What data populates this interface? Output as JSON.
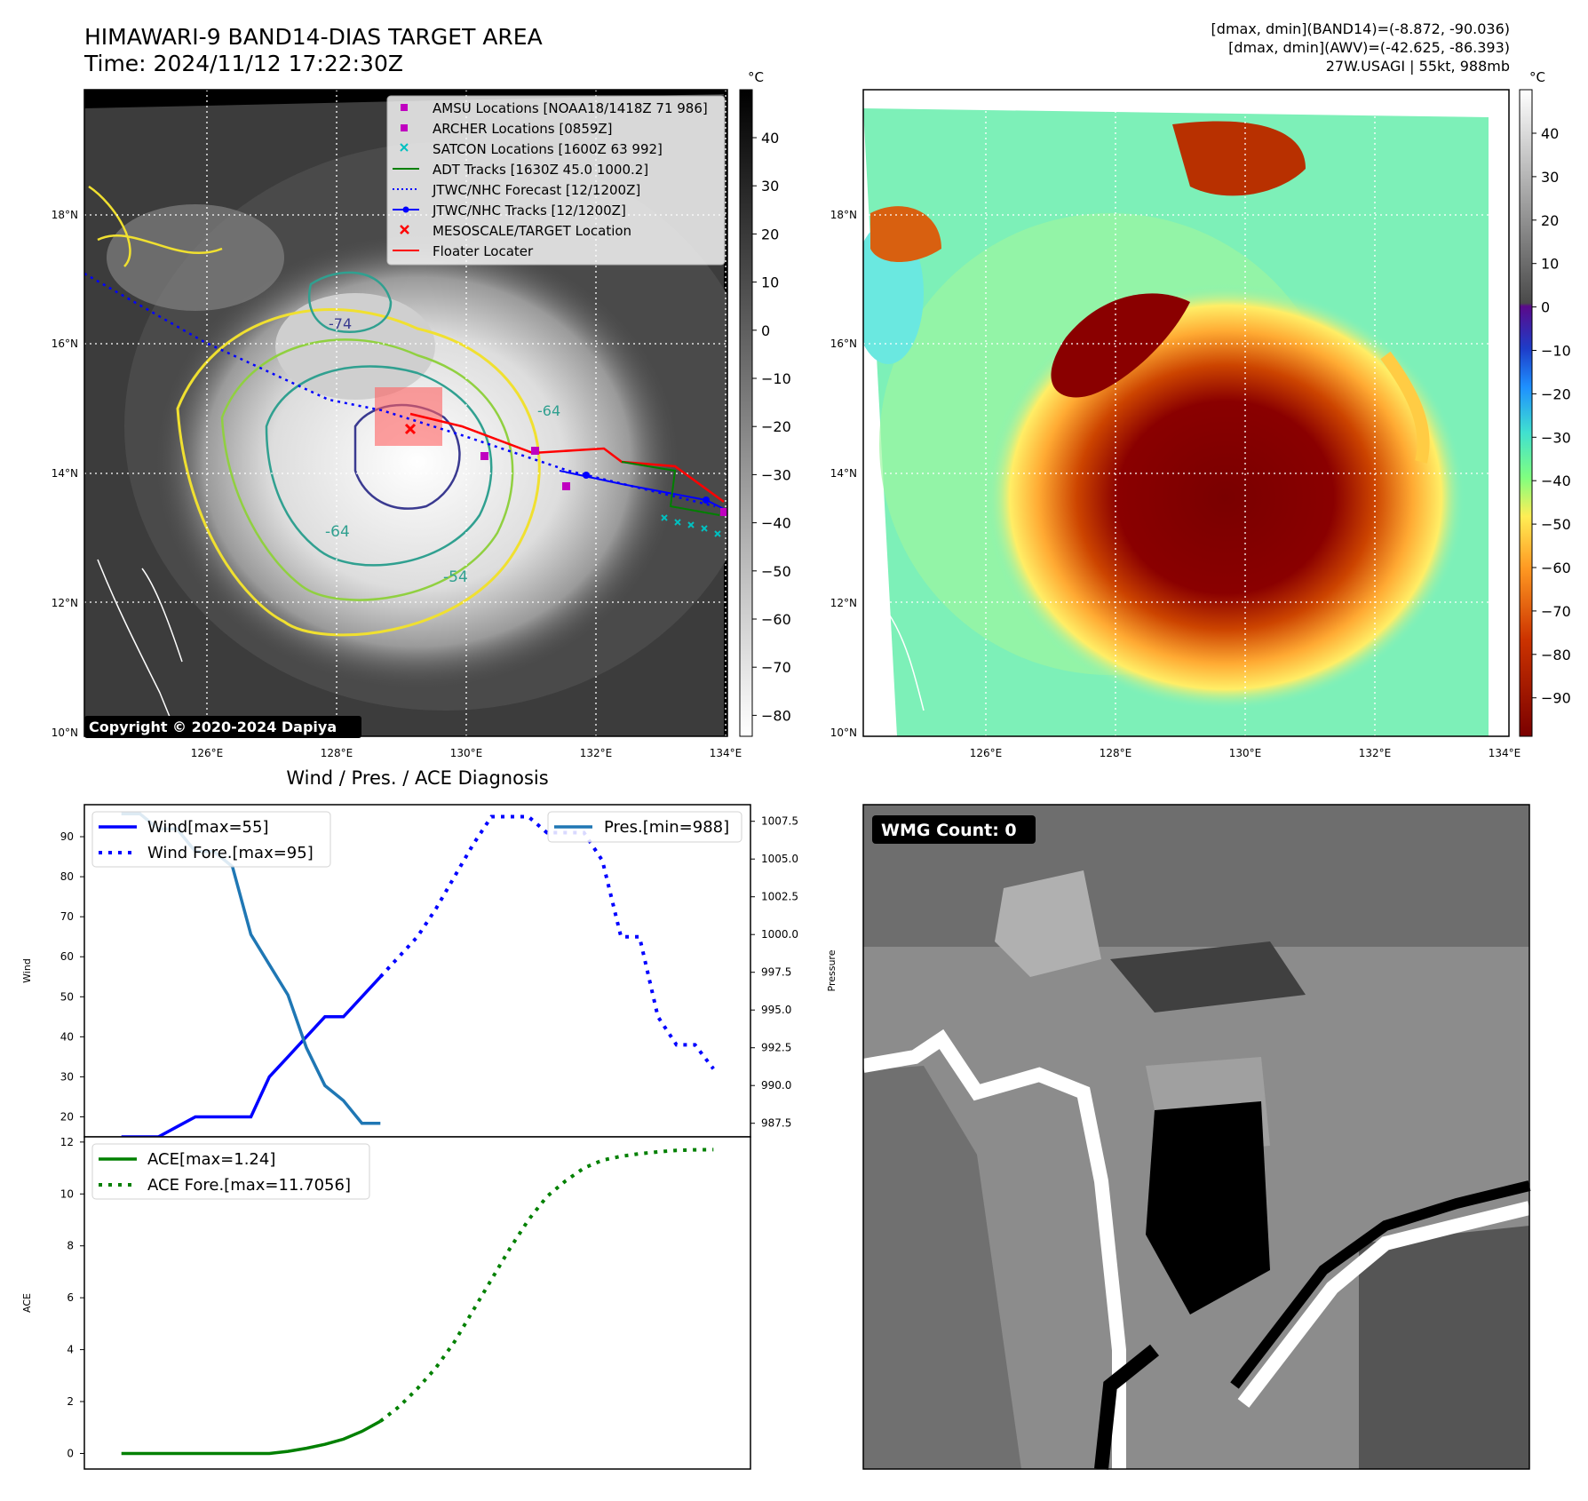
{
  "header": {
    "title": "HIMAWARI-9 BAND14-DIAS TARGET AREA",
    "time": "Time: 2024/11/12 17:22:30Z",
    "stats_line1": "[dmax, dmin](BAND14)=(-8.872, -90.036)",
    "stats_line2": "[dmax, dmin](AWV)=(-42.625, -86.393)",
    "stats_line3": "27W.USAGI | 55kt, 988mb"
  },
  "maps": {
    "lon_labels": [
      "126°E",
      "128°E",
      "130°E",
      "132°E",
      "134°E"
    ],
    "lat_labels": [
      "10°N",
      "12°N",
      "14°N",
      "16°N",
      "18°N"
    ],
    "copyright": "Copyright © 2020-2024 Dapiya",
    "contour_labels": [
      "-64",
      "-54",
      "-74",
      "-64"
    ],
    "legend": [
      {
        "label": "AMSU Locations [NOAA18/1418Z 71 986]",
        "marker": "square",
        "color": "#c000c0"
      },
      {
        "label": "ARCHER Locations [0859Z]",
        "marker": "square",
        "color": "#c000c0"
      },
      {
        "label": "SATCON Locations [1600Z 63 992]",
        "marker": "x",
        "color": "#00c0c0"
      },
      {
        "label": "ADT Tracks [1630Z 45.0 1000.2]",
        "marker": "line",
        "color": "#008000"
      },
      {
        "label": "JTWC/NHC Forecast [12/1200Z]",
        "marker": "dotted",
        "color": "#0000ff"
      },
      {
        "label": "JTWC/NHC Tracks [12/1200Z]",
        "marker": "line-dot",
        "color": "#0000ff"
      },
      {
        "label": "MESOSCALE/TARGET Location",
        "marker": "x",
        "color": "#ff0000"
      },
      {
        "label": "Floater Locater",
        "marker": "line",
        "color": "#ff0000"
      }
    ]
  },
  "colorbars": {
    "unit": "°C",
    "gray_ticks": [
      "40",
      "30",
      "20",
      "10",
      "0",
      "−10",
      "−20",
      "−30",
      "−40",
      "−50",
      "−60",
      "−70",
      "−80"
    ],
    "color_ticks": [
      "40",
      "30",
      "20",
      "10",
      "0",
      "−10",
      "−20",
      "−30",
      "−40",
      "−50",
      "−60",
      "−70",
      "−80",
      "−90"
    ]
  },
  "wmg": {
    "label": "WMG Count: 0"
  },
  "chart_data": [
    {
      "type": "line",
      "title": "Wind / Pres. / ACE Diagnosis",
      "ylabel": "Wind",
      "y2label": "Pressure",
      "ylim": [
        15,
        98
      ],
      "y2lim": [
        986.6,
        1008.6
      ],
      "x_range": [
        -2,
        34
      ],
      "yticks": [
        20,
        30,
        40,
        50,
        60,
        70,
        80,
        90
      ],
      "y2ticks": [
        "987.5",
        "990.0",
        "992.5",
        "995.0",
        "997.5",
        "1000.0",
        "1002.5",
        "1005.0",
        "1007.5"
      ],
      "series": [
        {
          "name": "Wind[max=55]",
          "style": "solid",
          "color": "#0000ff",
          "x": [
            0,
            1,
            2,
            3,
            4,
            5,
            6,
            7,
            8,
            9,
            10,
            11,
            12,
            13,
            14
          ],
          "values": [
            15,
            15,
            15,
            17.5,
            20,
            20,
            20,
            20,
            30,
            35,
            40,
            45,
            45,
            50,
            55
          ]
        },
        {
          "name": "Wind Fore.[max=95]",
          "style": "dotted",
          "color": "#0000ff",
          "x": [
            14,
            15,
            16,
            17,
            18,
            19,
            20,
            21,
            22,
            23,
            24,
            25,
            26,
            27,
            28,
            29,
            30,
            31,
            32
          ],
          "values": [
            55,
            60,
            65,
            72,
            80,
            88,
            95,
            95,
            95,
            91,
            91,
            91,
            84,
            65,
            65,
            45,
            38,
            38,
            32
          ]
        },
        {
          "name": "Pres.[min=988]",
          "style": "solid",
          "color": "#1f77b4",
          "axis": "right",
          "x": [
            0,
            1,
            2,
            3,
            4,
            5,
            6,
            7,
            8,
            9,
            10,
            11,
            12,
            13,
            14
          ],
          "values": [
            1008,
            1008,
            1007,
            1007,
            1005.5,
            1005.5,
            1004.5,
            1000,
            998,
            996,
            992.5,
            990,
            989,
            987.5,
            987.5
          ]
        }
      ]
    },
    {
      "type": "line",
      "ylabel": "ACE",
      "ylim": [
        -0.6,
        12.2
      ],
      "x_range": [
        -2,
        34
      ],
      "yticks": [
        0,
        2,
        4,
        6,
        8,
        10,
        12
      ],
      "series": [
        {
          "name": "ACE[max=1.24]",
          "style": "solid",
          "color": "#008000",
          "x": [
            0,
            1,
            2,
            3,
            4,
            5,
            6,
            7,
            8,
            9,
            10,
            11,
            12,
            13,
            14
          ],
          "values": [
            0,
            0,
            0,
            0,
            0,
            0,
            0,
            0,
            0,
            0.08,
            0.2,
            0.35,
            0.55,
            0.85,
            1.24
          ]
        },
        {
          "name": "ACE Fore.[max=11.7056]",
          "style": "dotted",
          "color": "#008000",
          "x": [
            14,
            15,
            16,
            17,
            18,
            19,
            20,
            21,
            22,
            23,
            24,
            25,
            26,
            27,
            28,
            29,
            30,
            31,
            32
          ],
          "values": [
            1.24,
            1.8,
            2.5,
            3.3,
            4.3,
            5.5,
            6.7,
            7.9,
            9.0,
            9.9,
            10.5,
            11.0,
            11.3,
            11.45,
            11.55,
            11.62,
            11.68,
            11.7,
            11.7056
          ]
        }
      ]
    }
  ]
}
